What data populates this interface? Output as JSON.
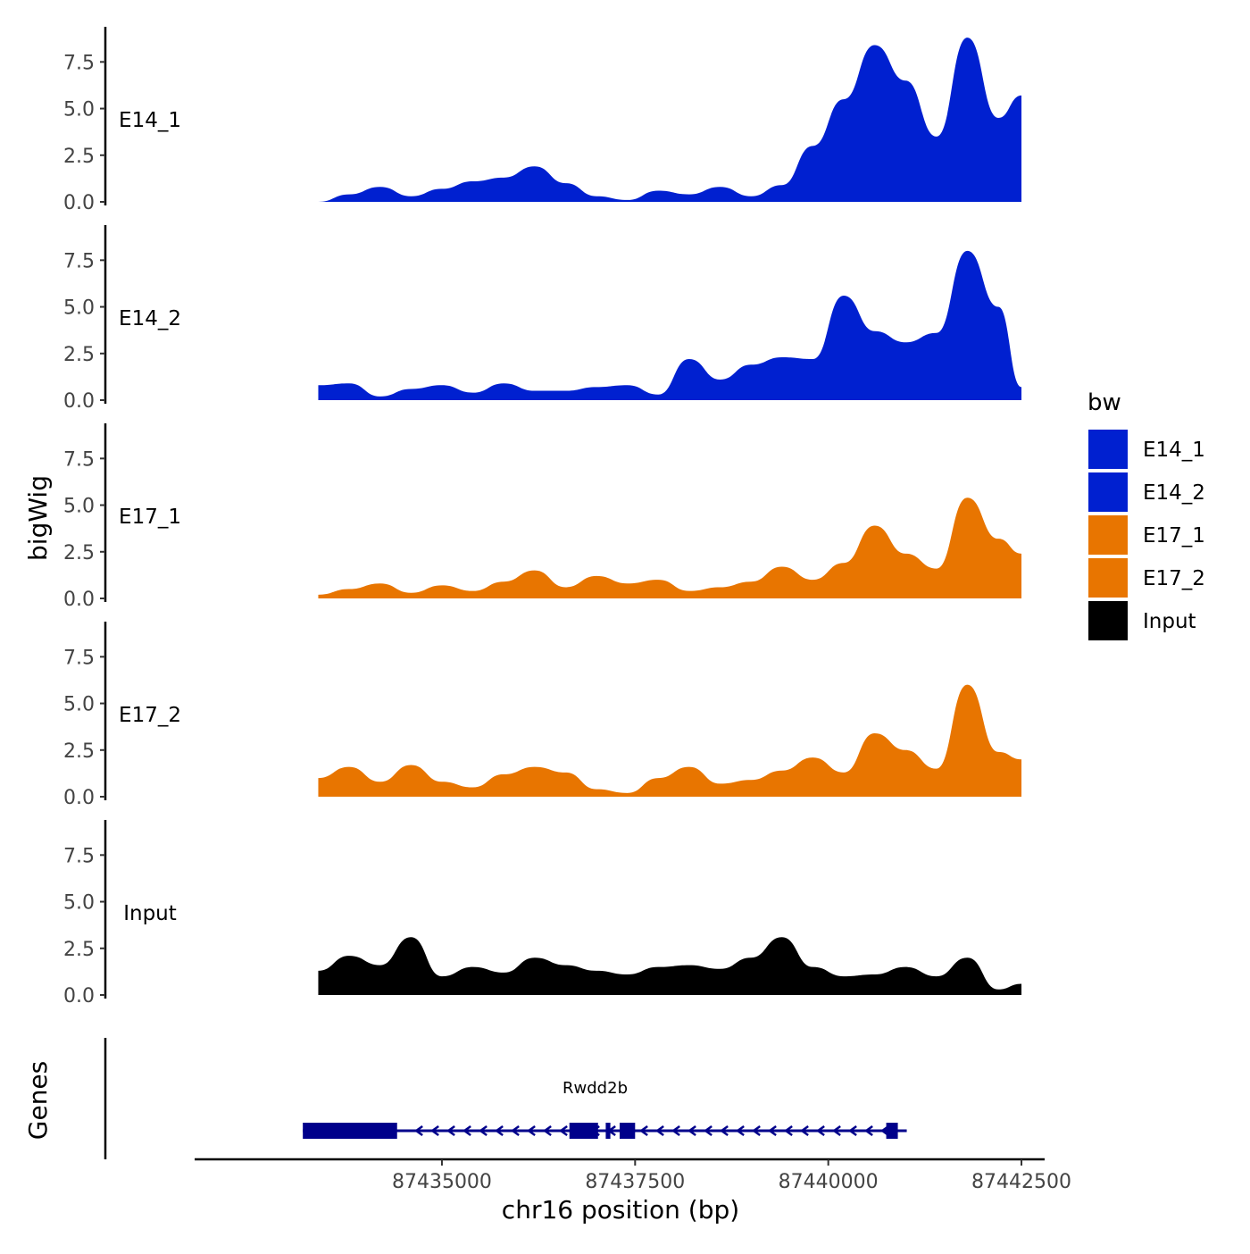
{
  "chart_data": {
    "type": "area",
    "title": "",
    "ylabel": "bigWig",
    "xlabel": "chr16 position (bp)",
    "xlim": [
      87431800,
      87442800
    ],
    "x_ticks": [
      87435000,
      87437500,
      87440000,
      87442500
    ],
    "x_tick_labels": [
      "87435000",
      "87437500",
      "87440000",
      "87442500"
    ],
    "ylim": [
      0,
      9
    ],
    "y_ticks": [
      0,
      2.5,
      5,
      7.5
    ],
    "y_tick_labels": [
      "0.0",
      "2.5",
      "5.0",
      "7.5"
    ],
    "colors": {
      "E14_1": "#0020d0",
      "E14_2": "#0020d0",
      "E17_1": "#e87500",
      "E17_2": "#e87500",
      "Input": "#000000",
      "gene": "#00008b"
    },
    "legend": {
      "title": "bw",
      "position": "right",
      "entries": [
        "E14_1",
        "E14_2",
        "E17_1",
        "E17_2",
        "Input"
      ]
    },
    "x": [
      87433400,
      87433800,
      87434200,
      87434600,
      87435000,
      87435400,
      87435800,
      87436200,
      87436600,
      87437000,
      87437400,
      87437800,
      87438200,
      87438600,
      87439000,
      87439400,
      87439800,
      87440200,
      87440600,
      87441000,
      87441400,
      87441800,
      87442200,
      87442500
    ],
    "series": [
      {
        "name": "E14_1",
        "values": [
          0.0,
          0.4,
          0.8,
          0.3,
          0.7,
          1.1,
          1.3,
          1.9,
          1.0,
          0.3,
          0.1,
          0.6,
          0.4,
          0.8,
          0.3,
          0.9,
          3.0,
          5.5,
          8.4,
          6.5,
          3.5,
          8.8,
          4.5,
          5.7
        ]
      },
      {
        "name": "E14_2",
        "values": [
          0.8,
          0.9,
          0.2,
          0.6,
          0.8,
          0.4,
          0.9,
          0.5,
          0.5,
          0.7,
          0.8,
          0.3,
          2.2,
          1.1,
          1.9,
          2.3,
          2.2,
          5.6,
          3.7,
          3.1,
          3.6,
          8.0,
          5.0,
          0.7
        ]
      },
      {
        "name": "E17_1",
        "values": [
          0.2,
          0.5,
          0.8,
          0.3,
          0.7,
          0.4,
          0.9,
          1.5,
          0.6,
          1.2,
          0.8,
          1.0,
          0.4,
          0.6,
          0.9,
          1.7,
          1.0,
          1.9,
          3.9,
          2.4,
          1.6,
          5.4,
          3.2,
          2.4
        ]
      },
      {
        "name": "E17_2",
        "values": [
          1.0,
          1.6,
          0.8,
          1.7,
          0.8,
          0.5,
          1.2,
          1.6,
          1.3,
          0.4,
          0.2,
          1.0,
          1.6,
          0.7,
          0.9,
          1.4,
          2.1,
          1.3,
          3.4,
          2.5,
          1.5,
          6.0,
          2.4,
          2.0
        ]
      },
      {
        "name": "Input",
        "values": [
          1.3,
          2.1,
          1.6,
          3.1,
          1.0,
          1.5,
          1.2,
          2.0,
          1.6,
          1.3,
          1.1,
          1.5,
          1.6,
          1.4,
          2.0,
          3.1,
          1.5,
          1.0,
          1.1,
          1.5,
          1.0,
          2.0,
          0.3,
          0.6
        ]
      }
    ],
    "gene_track": {
      "ylabel": "Genes",
      "gene_name": "Rwdd2b",
      "strand": "-",
      "start": 87433200,
      "end": 87440900,
      "exons": [
        [
          87433200,
          87434420
        ],
        [
          87436650,
          87437020
        ],
        [
          87437120,
          87437180
        ],
        [
          87437300,
          87437500
        ],
        [
          87440750,
          87440900
        ]
      ]
    }
  }
}
